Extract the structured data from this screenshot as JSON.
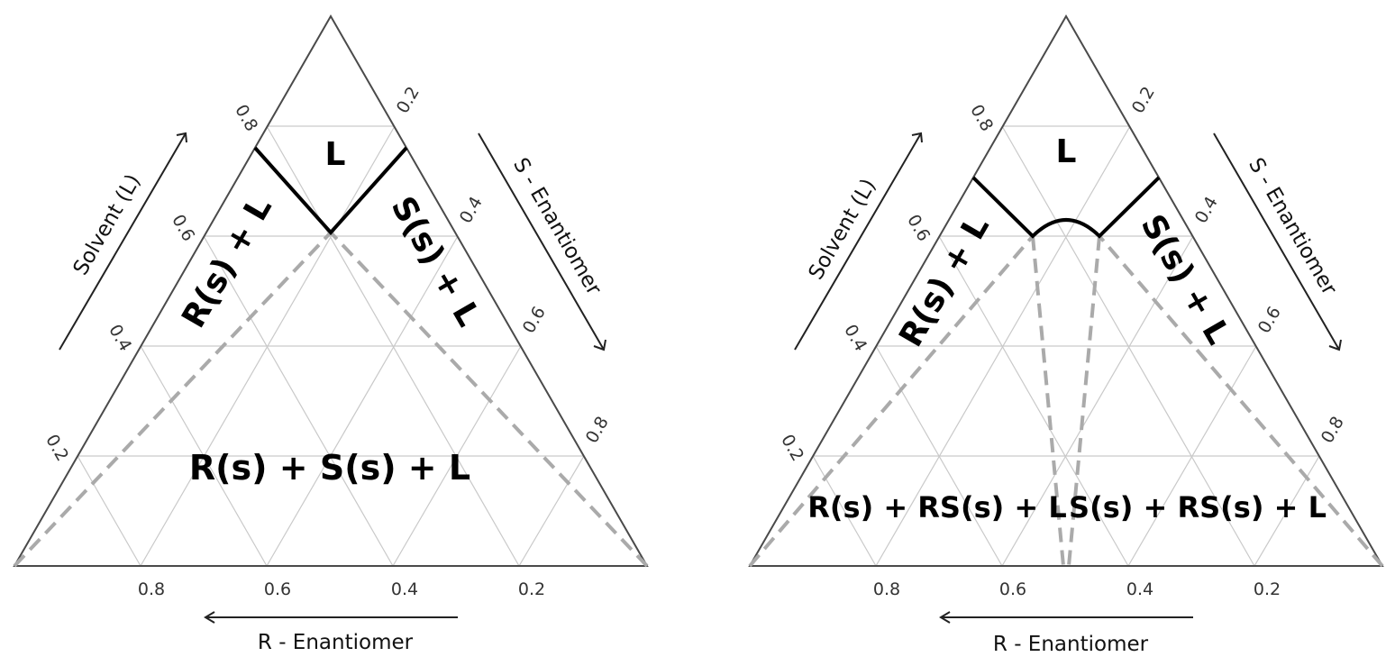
{
  "diagrams": [
    {
      "tick_labels": {
        "bottom": [
          "0.8",
          "0.6",
          "0.4",
          "0.2"
        ],
        "left": [
          "0.2",
          "0.4",
          "0.6",
          "0.8"
        ],
        "right": [
          "0.2",
          "0.4",
          "0.6",
          "0.8"
        ]
      },
      "axis_labels": {
        "bottom": "R - Enantiomer",
        "left": "Solvent (L)",
        "right": "S - Enantiomer"
      },
      "regions": {
        "liquid": "L",
        "left_solid": "R(s) + L",
        "right_solid": "S(s) + L",
        "bottom": "R(s) + S(s) + L"
      }
    },
    {
      "tick_labels": {
        "bottom": [
          "0.8",
          "0.6",
          "0.4",
          "0.2"
        ],
        "left": [
          "0.2",
          "0.4",
          "0.6",
          "0.8"
        ],
        "right": [
          "0.2",
          "0.4",
          "0.6",
          "0.8"
        ]
      },
      "axis_labels": {
        "bottom": "R - Enantiomer",
        "left": "Solvent (L)",
        "right": "S - Enantiomer"
      },
      "regions": {
        "liquid": "L",
        "left_solid": "R(s) + L",
        "right_solid": "S(s) + L",
        "bottom_left": "R(s) + RS(s) + L",
        "bottom_right": "S(s) + RS(s) + L"
      }
    }
  ]
}
